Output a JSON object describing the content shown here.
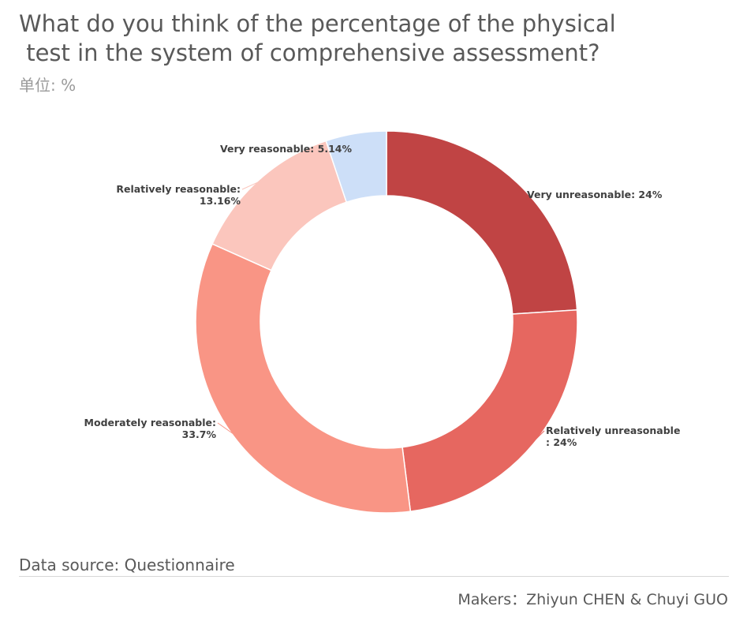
{
  "title_lines": [
    "What do you think of the percentage of the physical",
    " test in the system of comprehensive assessment?"
  ],
  "unit": "单位: %",
  "chart_data": {
    "type": "pie",
    "donut": true,
    "title": "What do you think of the percentage of the physical test in the system of comprehensive assessment?",
    "unit": "%",
    "slices": [
      {
        "label_lines": [
          "Very unreasonable: 24%"
        ],
        "name": "Very unreasonable",
        "value": 24,
        "color": "#c04444"
      },
      {
        "label_lines": [
          "Relatively unreasonable",
          ": 24%"
        ],
        "name": "Relatively unreasonable",
        "value": 24,
        "color": "#e66760"
      },
      {
        "label_lines": [
          "Moderately reasonable:",
          "33.7%"
        ],
        "name": "Moderately reasonable",
        "value": 33.7,
        "color": "#f99585"
      },
      {
        "label_lines": [
          "Relatively reasonable:",
          "13.16%"
        ],
        "name": "Relatively reasonable",
        "value": 13.16,
        "color": "#fbc6bd"
      },
      {
        "label_lines": [
          "Very reasonable: 5.14%"
        ],
        "name": "Very reasonable",
        "value": 5.14,
        "color": "#cddff8"
      }
    ]
  },
  "source": "Data source: Questionnaire",
  "makers": "Makers：Zhiyun CHEN & Chuyi GUO"
}
